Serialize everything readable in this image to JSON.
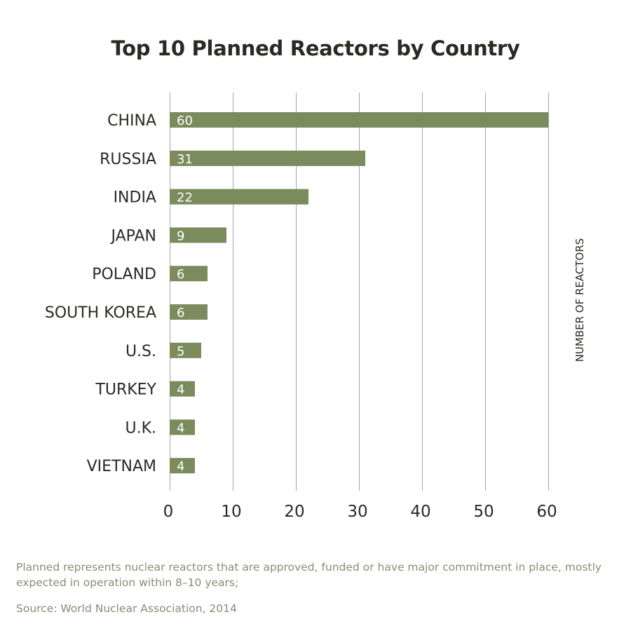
{
  "chart_data": {
    "type": "bar",
    "orientation": "horizontal",
    "title": "Top 10 Planned Reactors by Country",
    "categories": [
      "CHINA",
      "RUSSIA",
      "INDIA",
      "JAPAN",
      "POLAND",
      "SOUTH KOREA",
      "U.S.",
      "TURKEY",
      "U.K.",
      "VIETNAM"
    ],
    "values": [
      60,
      31,
      22,
      9,
      6,
      6,
      5,
      4,
      4,
      4
    ],
    "value_axis_label": "NUMBER OF REACTORS",
    "xlim": [
      0,
      60
    ],
    "x_ticks": [
      "0",
      "10",
      "20",
      "30",
      "40",
      "50",
      "60"
    ],
    "grid": true,
    "colors": {
      "bar": "#7a8b5e",
      "grid": "#a5a5a5",
      "text": "#2b2924",
      "bar_label": "#ffffff"
    }
  },
  "footnote": "Planned represents nuclear reactors that are approved, funded or have major commitment in place, mostly expected in operation within 8–10 years;",
  "source": "Source: World Nuclear Association, 2014"
}
